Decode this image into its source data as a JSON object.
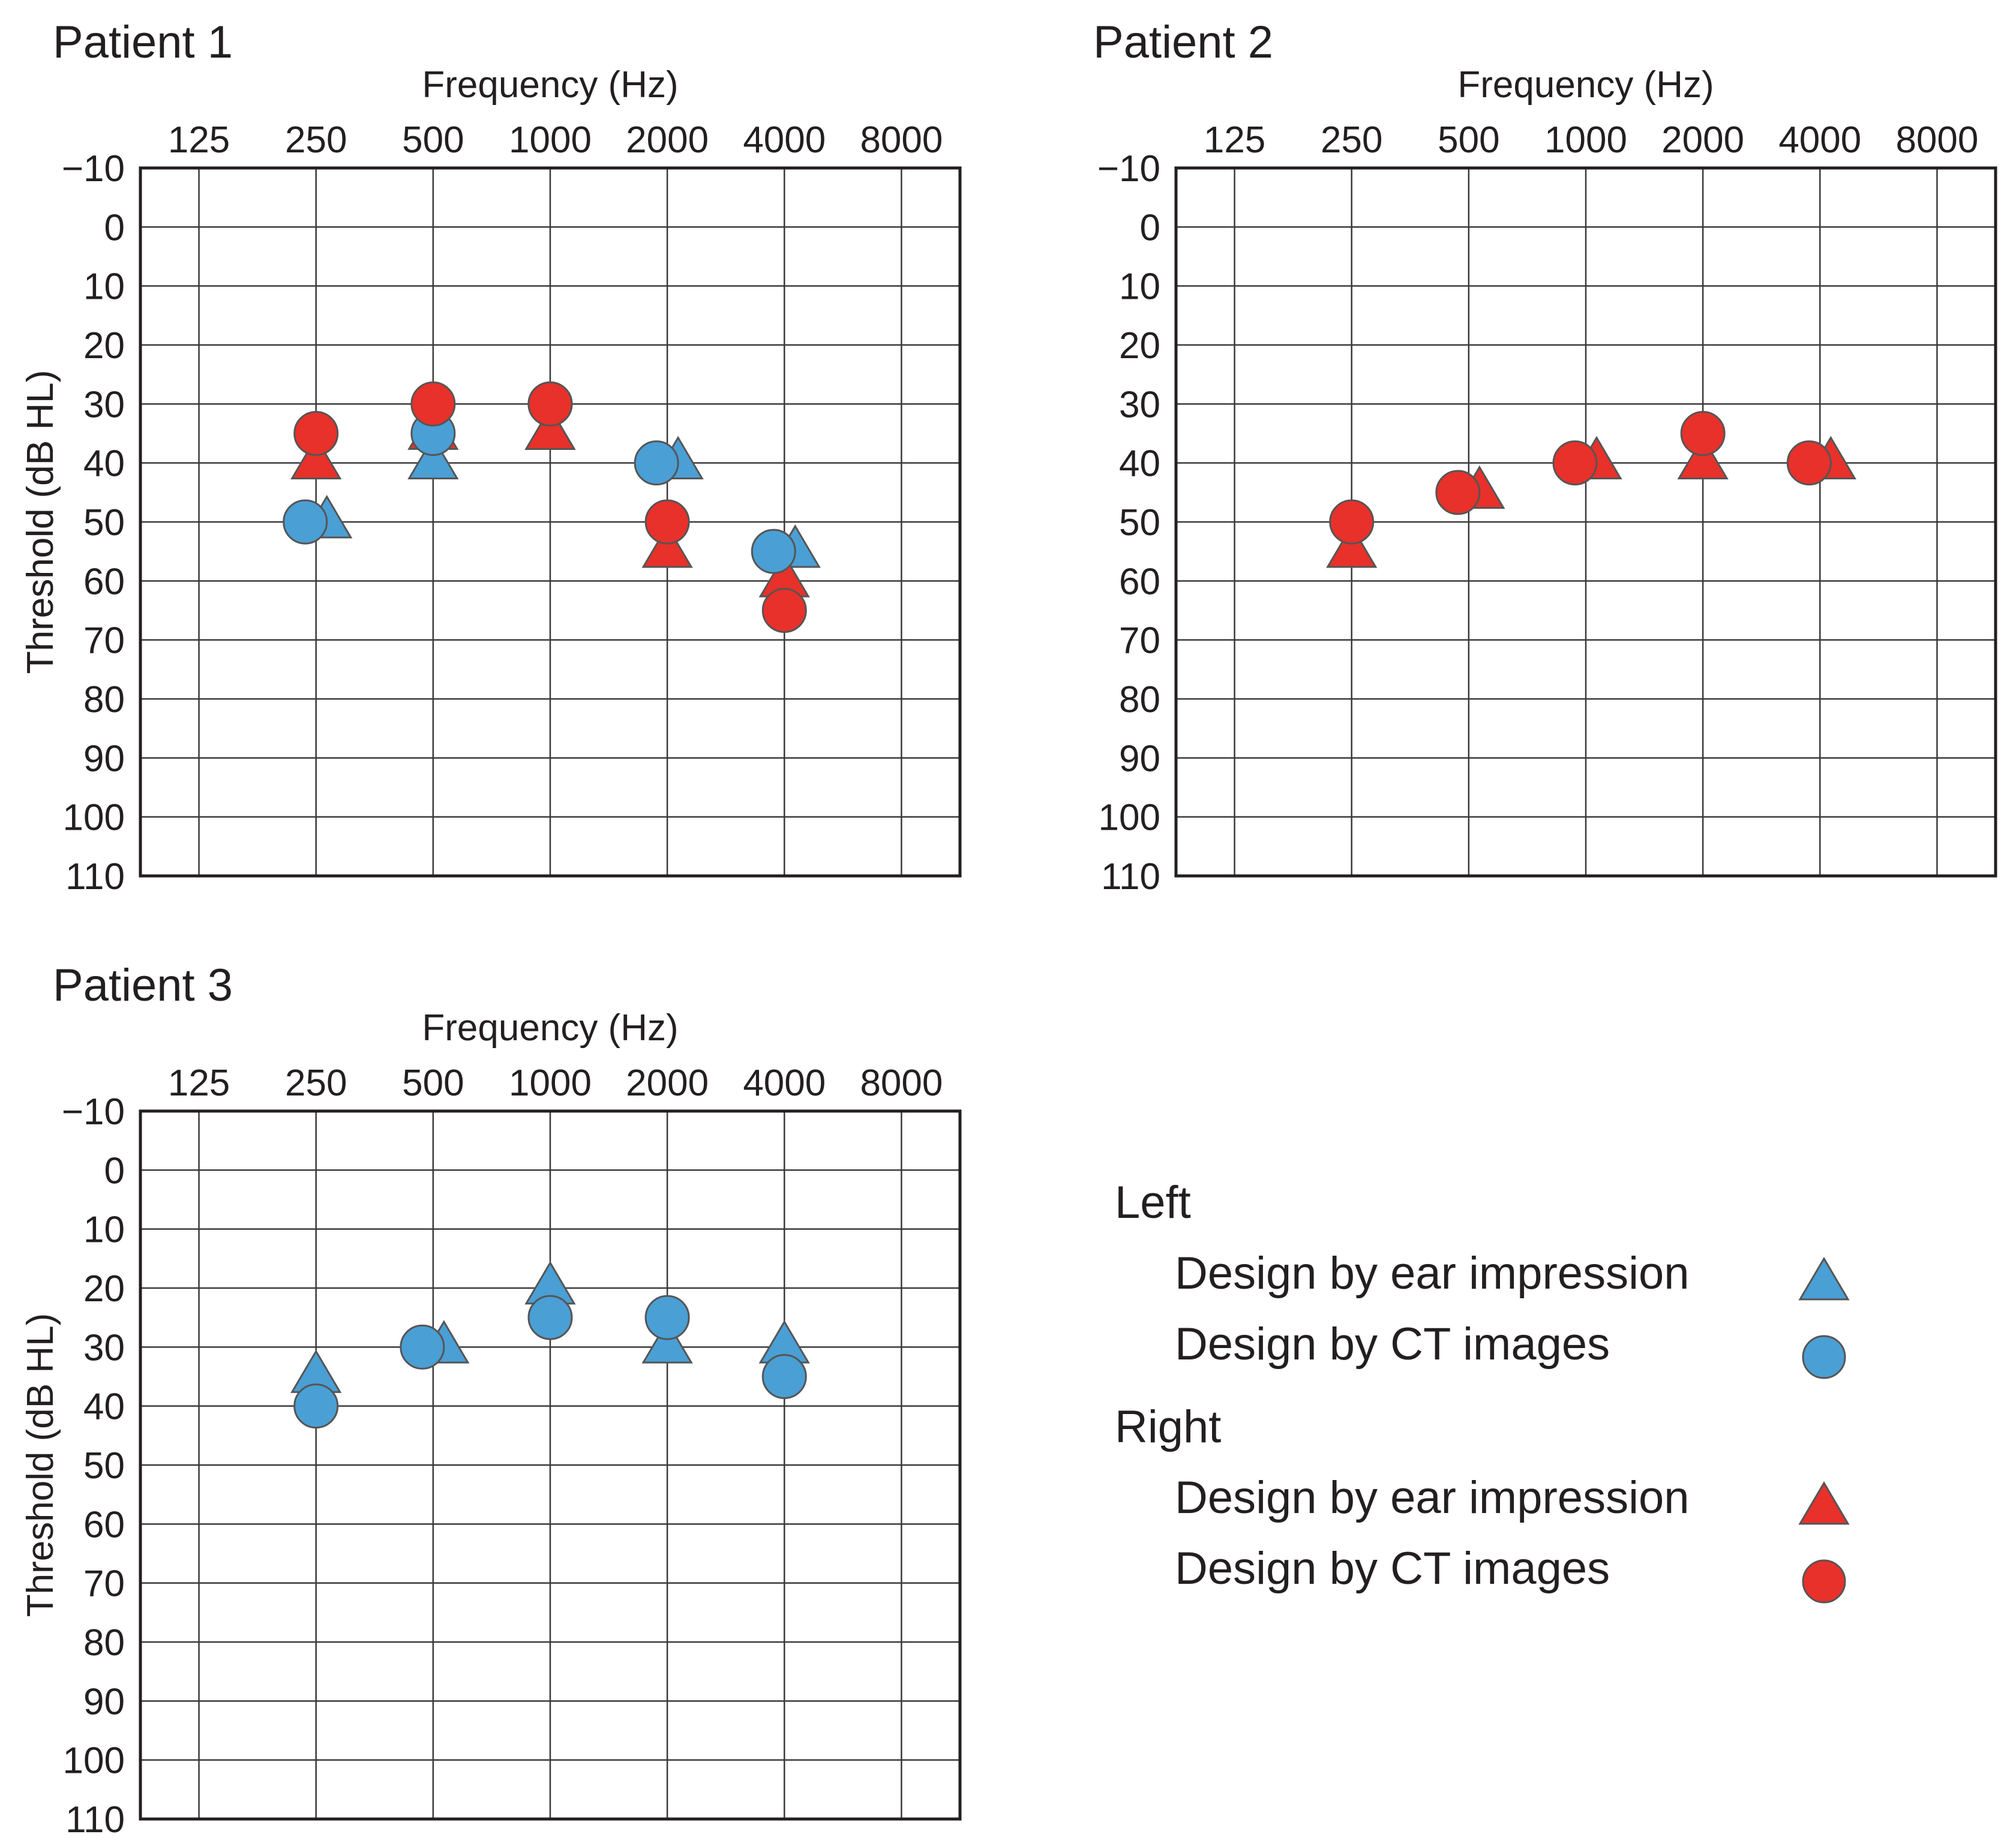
{
  "colors": {
    "left": "#4a9fd5",
    "right": "#e8312a",
    "marker_stroke": "#555555",
    "grid": "#3a3a3a",
    "frame": "#231f20"
  },
  "chart_data": [
    {
      "type": "scatter",
      "title": "Patient 1",
      "xlabel": "Frequency (Hz)",
      "ylabel": "Threshold (dB HL)",
      "x_categories": [
        "125",
        "250",
        "500",
        "1000",
        "2000",
        "4000",
        "8000"
      ],
      "y_ticks": [
        "−10",
        "0",
        "10",
        "20",
        "30",
        "40",
        "50",
        "60",
        "70",
        "80",
        "90",
        "100",
        "110"
      ],
      "ylim": [
        -10,
        110
      ],
      "y_inverted": true,
      "grid": true,
      "series": [
        {
          "name": "Left – Design by ear impression",
          "side": "left",
          "marker": "triangle",
          "x": [
            "250",
            "500",
            "1000",
            "2000",
            "4000"
          ],
          "values": [
            50,
            40,
            35,
            40,
            55
          ]
        },
        {
          "name": "Left – Design by CT images",
          "side": "left",
          "marker": "circle",
          "x": [
            "250",
            "500",
            "1000",
            "2000",
            "4000"
          ],
          "values": [
            50,
            35,
            30,
            40,
            55
          ]
        },
        {
          "name": "Right – Design by ear impression",
          "side": "right",
          "marker": "triangle",
          "x": [
            "250",
            "500",
            "1000",
            "2000",
            "4000"
          ],
          "values": [
            40,
            35,
            35,
            55,
            60
          ]
        },
        {
          "name": "Right – Design by CT images",
          "side": "right",
          "marker": "circle",
          "x": [
            "250",
            "500",
            "1000",
            "2000",
            "4000"
          ],
          "values": [
            35,
            30,
            30,
            50,
            65
          ]
        }
      ]
    },
    {
      "type": "scatter",
      "title": "Patient 2",
      "xlabel": "Frequency (Hz)",
      "ylabel": "Threshold (dB HL)",
      "x_categories": [
        "125",
        "250",
        "500",
        "1000",
        "2000",
        "4000",
        "8000"
      ],
      "y_ticks": [
        "−10",
        "0",
        "10",
        "20",
        "30",
        "40",
        "50",
        "60",
        "70",
        "80",
        "90",
        "100",
        "110"
      ],
      "ylim": [
        -10,
        110
      ],
      "y_inverted": true,
      "grid": true,
      "series": [
        {
          "name": "Right – Design by ear impression",
          "side": "right",
          "marker": "triangle",
          "x": [
            "250",
            "500",
            "1000",
            "2000",
            "4000"
          ],
          "values": [
            55,
            45,
            40,
            40,
            40
          ]
        },
        {
          "name": "Right – Design by CT images",
          "side": "right",
          "marker": "circle",
          "x": [
            "250",
            "500",
            "1000",
            "2000",
            "4000"
          ],
          "values": [
            50,
            45,
            40,
            35,
            40
          ]
        }
      ]
    },
    {
      "type": "scatter",
      "title": "Patient 3",
      "xlabel": "Frequency (Hz)",
      "ylabel": "Threshold (dB HL)",
      "x_categories": [
        "125",
        "250",
        "500",
        "1000",
        "2000",
        "4000",
        "8000"
      ],
      "y_ticks": [
        "−10",
        "0",
        "10",
        "20",
        "30",
        "40",
        "50",
        "60",
        "70",
        "80",
        "90",
        "100",
        "110"
      ],
      "ylim": [
        -10,
        110
      ],
      "y_inverted": true,
      "grid": true,
      "series": [
        {
          "name": "Left – Design by ear impression",
          "side": "left",
          "marker": "triangle",
          "x": [
            "250",
            "500",
            "1000",
            "2000",
            "4000"
          ],
          "values": [
            35,
            30,
            20,
            30,
            30
          ]
        },
        {
          "name": "Left – Design by CT images",
          "side": "left",
          "marker": "circle",
          "x": [
            "250",
            "500",
            "1000",
            "2000",
            "4000"
          ],
          "values": [
            40,
            30,
            25,
            25,
            35
          ]
        }
      ]
    }
  ],
  "legend": {
    "groups": [
      {
        "label": "Left",
        "side": "left",
        "items": [
          {
            "label": "Design by ear impression",
            "marker": "triangle"
          },
          {
            "label": "Design by CT images",
            "marker": "circle"
          }
        ]
      },
      {
        "label": "Right",
        "side": "right",
        "items": [
          {
            "label": "Design by ear impression",
            "marker": "triangle"
          },
          {
            "label": "Design by CT images",
            "marker": "circle"
          }
        ]
      }
    ]
  }
}
